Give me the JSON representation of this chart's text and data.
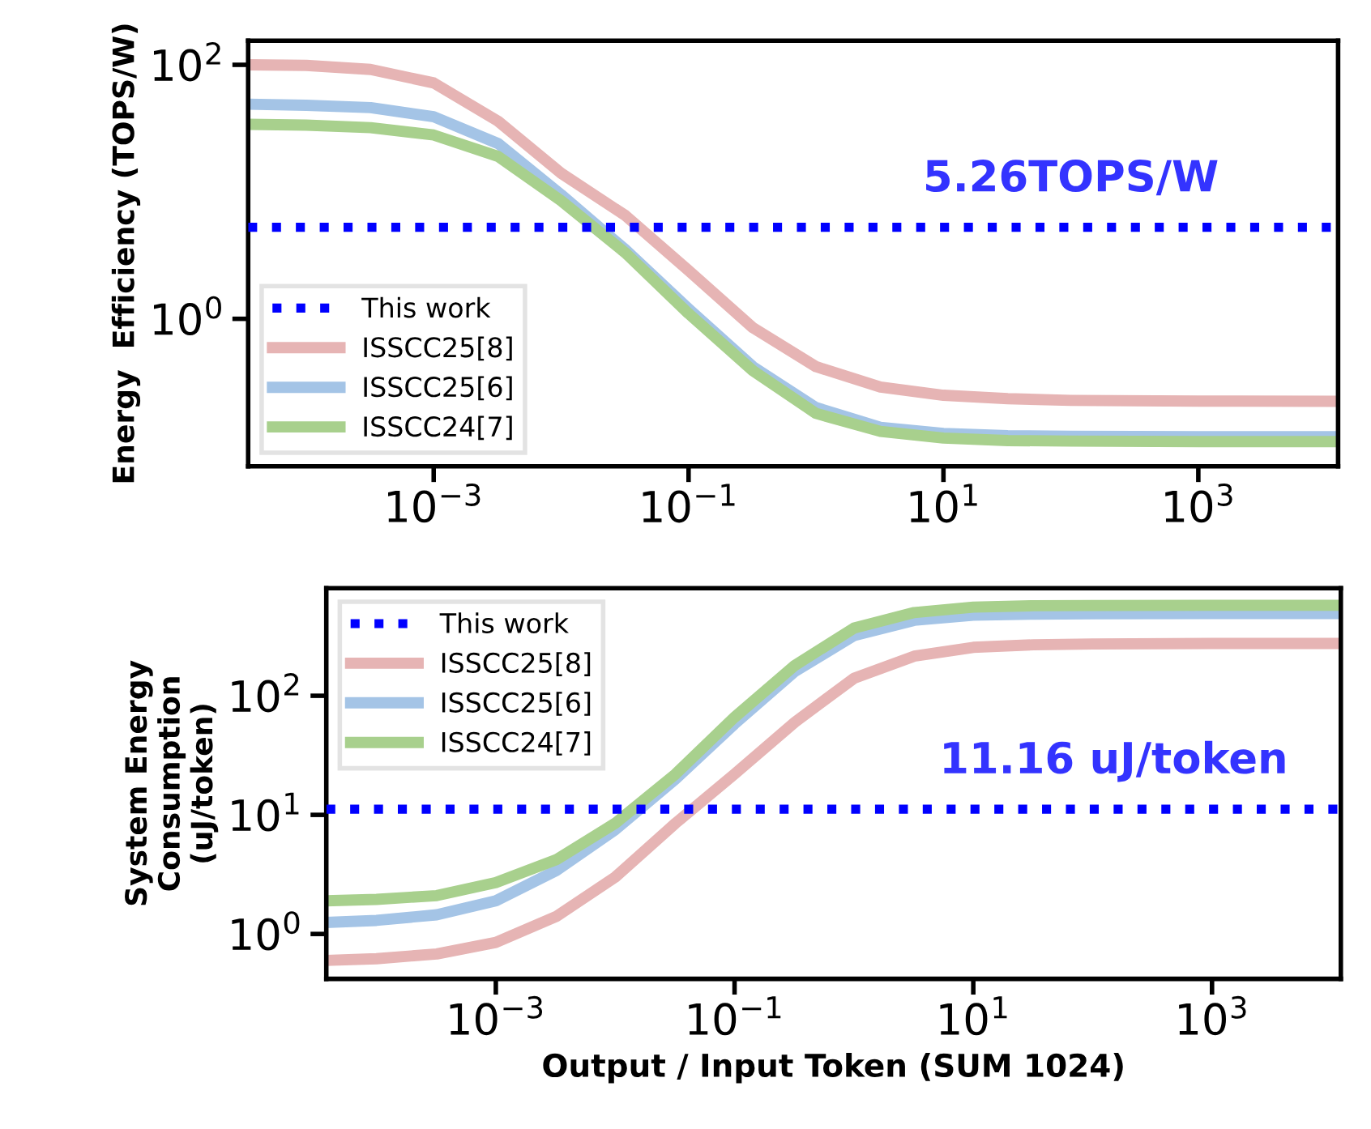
{
  "chart_data": [
    {
      "type": "line",
      "ylabel": "Energy  Efficiency (TOPS/W)",
      "log": "xy",
      "xlim": [
        3.5e-05,
        12500.0
      ],
      "ylim": [
        0.069,
        155
      ],
      "xticks": [
        {
          "value": 0.001,
          "label": "10$^{−3}$"
        },
        {
          "value": 0.1,
          "label": "10$^{−1}$"
        },
        {
          "value": 10,
          "label": "10$^{1}$"
        },
        {
          "value": 1000,
          "label": "10$^{3}$"
        }
      ],
      "yticks": [
        {
          "value": 1,
          "label": "10$^{0}$"
        },
        {
          "value": 100,
          "label": "10$^{2}$"
        }
      ],
      "legend": "lower left",
      "grid": false,
      "annotations": [
        {
          "text": "5.26TOPS/W",
          "x": 100,
          "y": 5.26
        }
      ],
      "series": [
        {
          "name": "This work",
          "color": "#0000ff",
          "line_style": "dotted",
          "x": [
            3.5e-05,
            12500.0
          ],
          "values": [
            5.26,
            5.26
          ]
        },
        {
          "name": "ISSCC25[8]",
          "color": "#e6b4b4",
          "x": [
            3.5e-05,
            0.0001,
            0.00032,
            0.001,
            0.0032,
            0.01,
            0.032,
            0.1,
            0.32,
            1,
            3.2,
            10,
            32,
            100,
            1000,
            12500.0
          ],
          "values": [
            100,
            99,
            92,
            72,
            36,
            14,
            6.5,
            2.4,
            0.85,
            0.42,
            0.29,
            0.25,
            0.235,
            0.228,
            0.225,
            0.224
          ]
        },
        {
          "name": "ISSCC25[6]",
          "color": "#a4c4e6",
          "x": [
            3.5e-05,
            0.0001,
            0.00032,
            0.001,
            0.0032,
            0.01,
            0.032,
            0.1,
            0.32,
            1,
            3.2,
            10,
            32,
            100,
            1000,
            12500.0
          ],
          "values": [
            49,
            48,
            46,
            39,
            24,
            9.5,
            3.5,
            1.2,
            0.42,
            0.2,
            0.14,
            0.125,
            0.12,
            0.119,
            0.118,
            0.118
          ]
        },
        {
          "name": "ISSCC24[7]",
          "color": "#a8d08d",
          "x": [
            3.5e-05,
            0.0001,
            0.00032,
            0.001,
            0.0032,
            0.01,
            0.032,
            0.1,
            0.32,
            1,
            3.2,
            10,
            32,
            100,
            1000,
            12500.0
          ],
          "values": [
            34,
            33.5,
            32,
            28,
            19,
            8.5,
            3.3,
            1.1,
            0.39,
            0.18,
            0.13,
            0.115,
            0.11,
            0.109,
            0.108,
            0.108
          ]
        }
      ]
    },
    {
      "type": "line",
      "ylabel": "System Energy\nConsumption\n(uJ/token)",
      "xlabel": "Output / Input Token (SUM 1024)",
      "log": "xy",
      "xlim": [
        3.8e-05,
        12000.0
      ],
      "ylim": [
        0.42,
        800
      ],
      "xticks": [
        {
          "value": 0.001,
          "label": "10$^{−3}$"
        },
        {
          "value": 0.1,
          "label": "10$^{−1}$"
        },
        {
          "value": 10,
          "label": "10$^{1}$"
        },
        {
          "value": 1000,
          "label": "10$^{3}$"
        }
      ],
      "yticks": [
        {
          "value": 1,
          "label": "10$^{0}$"
        },
        {
          "value": 10,
          "label": "10$^{1}$"
        },
        {
          "value": 100,
          "label": "10$^{2}$"
        }
      ],
      "legend": "upper left",
      "grid": false,
      "annotations": [
        {
          "text": "11.16 uJ/token",
          "x": 150,
          "y": 11.16
        }
      ],
      "series": [
        {
          "name": "This work",
          "color": "#0000ff",
          "line_style": "dotted",
          "x": [
            3.8e-05,
            12000.0
          ],
          "values": [
            11.16,
            11.16
          ]
        },
        {
          "name": "ISSCC25[8]",
          "color": "#e6b4b4",
          "x": [
            3.8e-05,
            0.0001,
            0.00032,
            0.001,
            0.0032,
            0.01,
            0.032,
            0.1,
            0.32,
            1,
            3.2,
            10,
            32,
            100,
            1000,
            12000.0
          ],
          "values": [
            0.6,
            0.62,
            0.68,
            0.85,
            1.4,
            3,
            8.5,
            22,
            60,
            140,
            215,
            255,
            268,
            272,
            275,
            275
          ]
        },
        {
          "name": "ISSCC25[6]",
          "color": "#a4c4e6",
          "x": [
            3.8e-05,
            0.0001,
            0.00032,
            0.001,
            0.0032,
            0.01,
            0.032,
            0.1,
            0.32,
            1,
            3.2,
            10,
            32,
            100,
            1000,
            12000.0
          ],
          "values": [
            1.25,
            1.3,
            1.45,
            1.9,
            3.4,
            7.5,
            20,
            58,
            160,
            320,
            430,
            475,
            485,
            488,
            490,
            490
          ]
        },
        {
          "name": "ISSCC24[7]",
          "color": "#a8d08d",
          "x": [
            3.8e-05,
            0.0001,
            0.00032,
            0.001,
            0.0032,
            0.01,
            0.032,
            0.1,
            0.32,
            1,
            3.2,
            10,
            32,
            100,
            1000,
            12000.0
          ],
          "values": [
            1.9,
            1.95,
            2.1,
            2.7,
            4.2,
            8.5,
            22,
            66,
            180,
            370,
            500,
            555,
            570,
            573,
            575,
            575
          ]
        }
      ]
    }
  ]
}
